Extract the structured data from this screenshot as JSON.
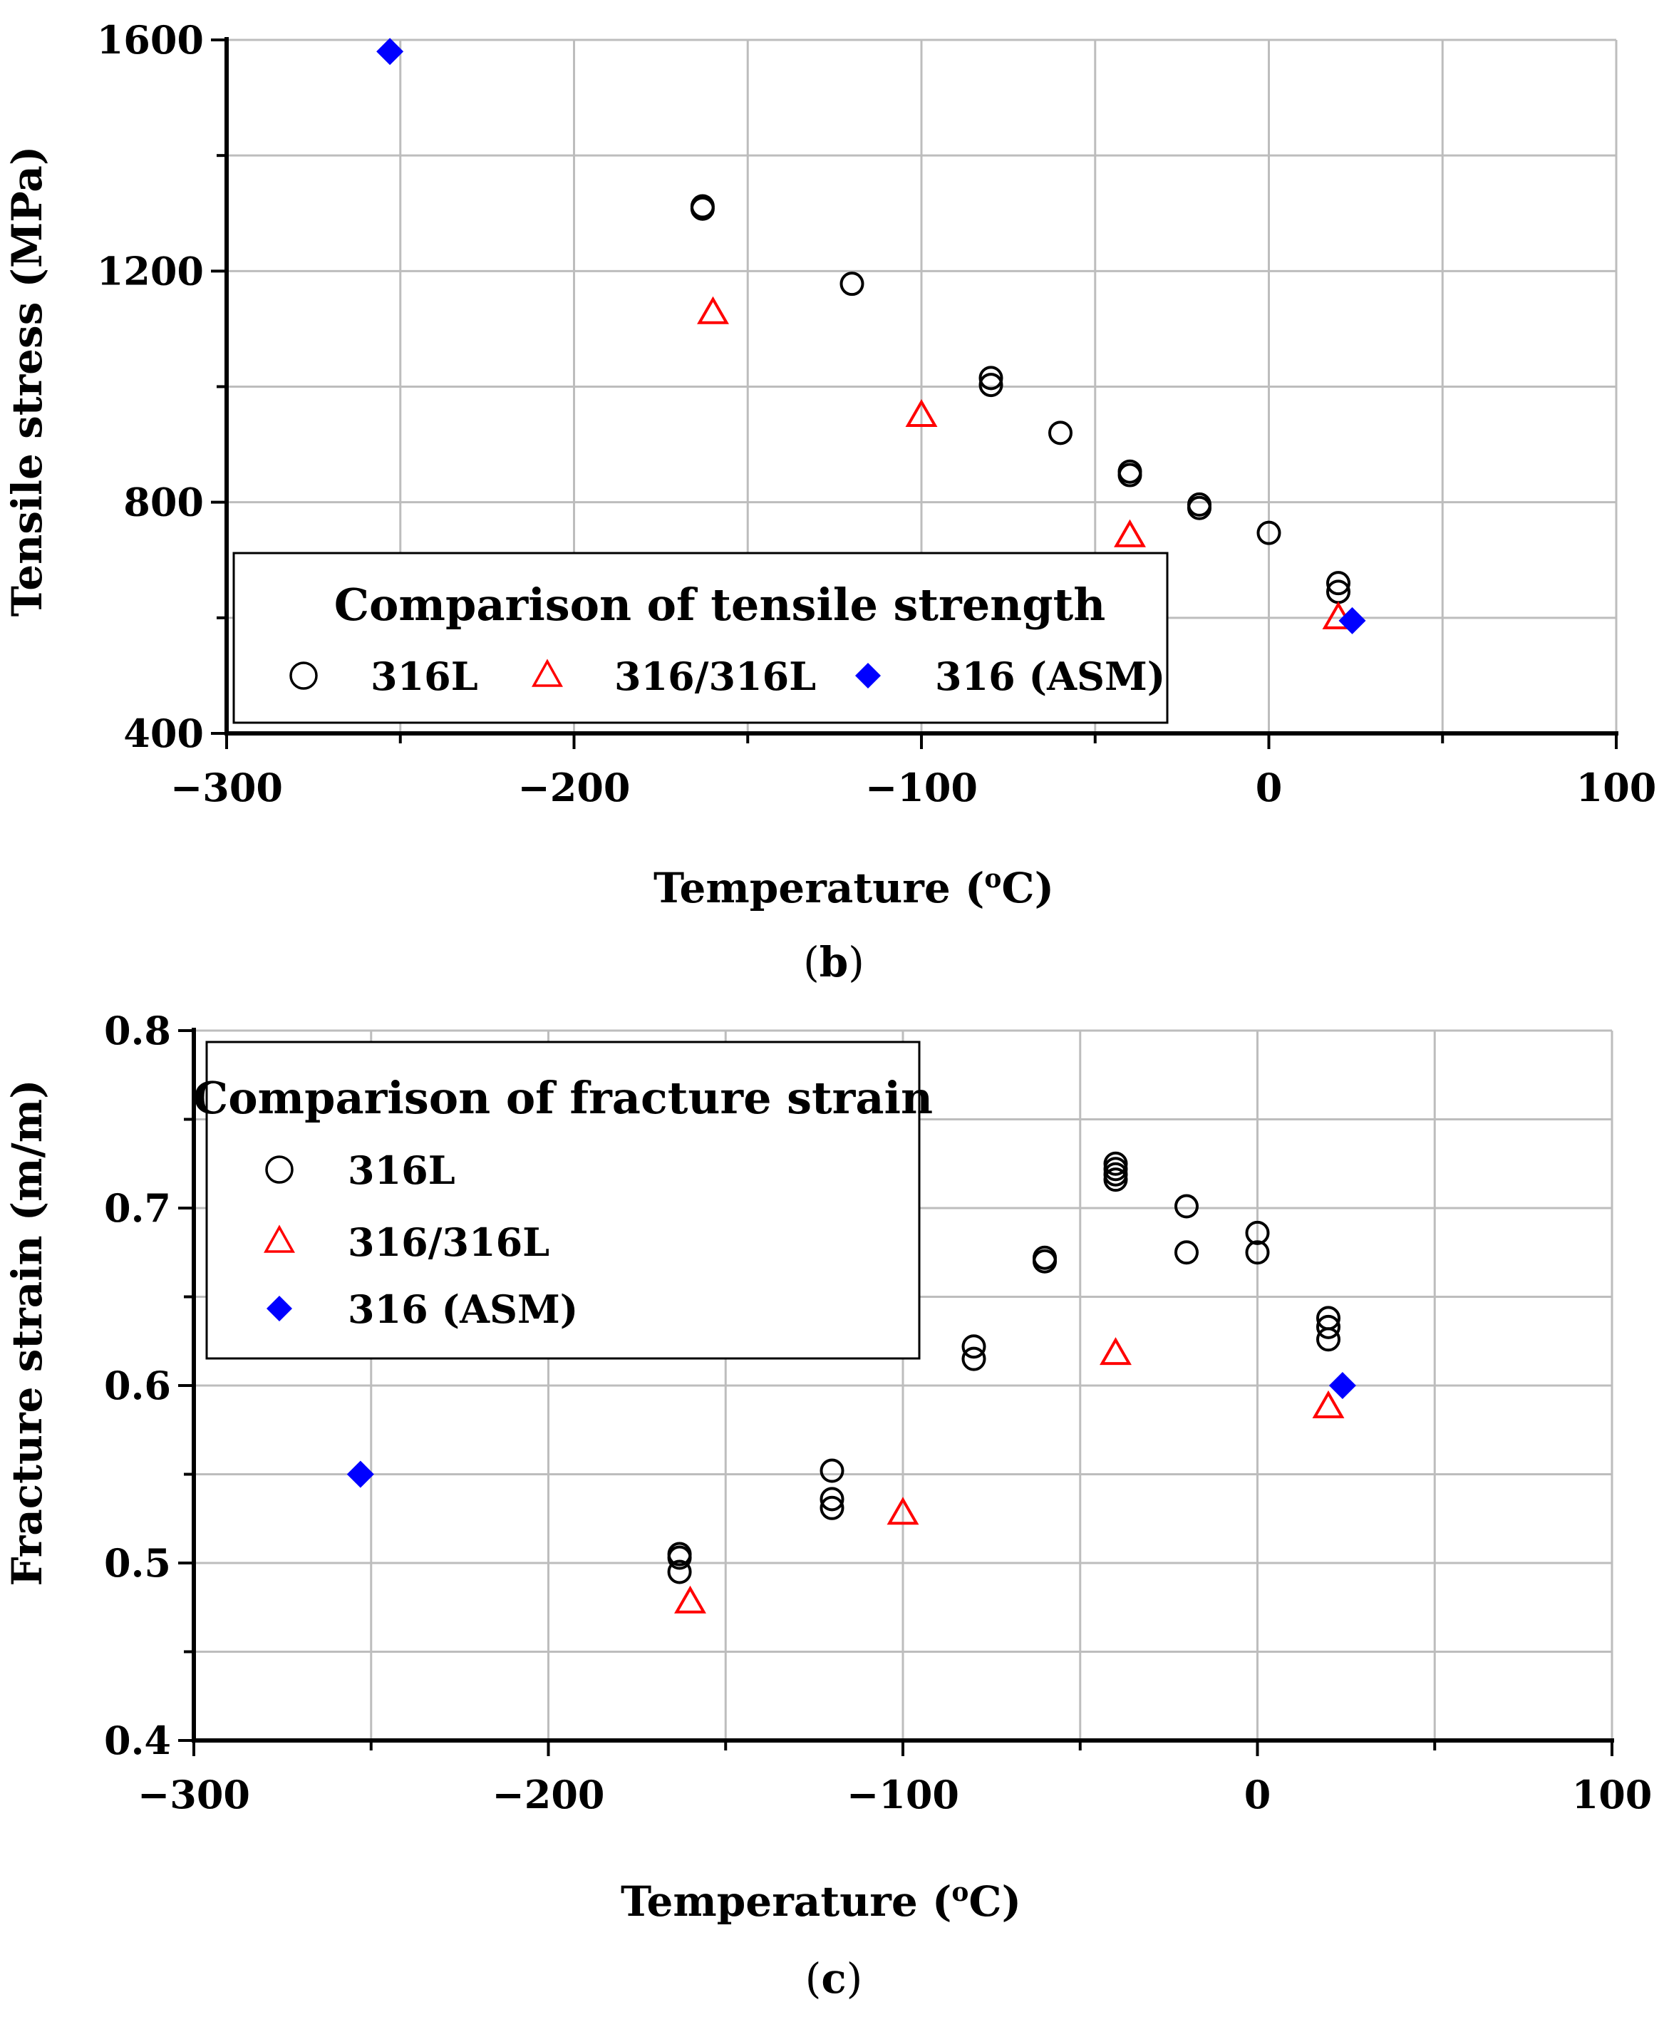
{
  "chart_data": [
    {
      "type": "scatter",
      "panel_label": "b",
      "xlabel": "Temperature (",
      "xlabel_sup": "o",
      "xlabel_unit": "C)",
      "ylabel": "Tensile stress (MPa)",
      "xlim": [
        -300,
        100
      ],
      "ylim": [
        400,
        1600
      ],
      "x_ticks": [
        -300,
        -200,
        -100,
        0,
        100
      ],
      "x_tick_labels": [
        "−300",
        "−200",
        "−100",
        "0",
        "100"
      ],
      "y_ticks": [
        400,
        800,
        1200,
        1600
      ],
      "y_tick_labels": [
        "400",
        "800",
        "1200",
        "1600"
      ],
      "grid": true,
      "legend": {
        "title": "Comparison of tensile strength",
        "placement": "bottom-left",
        "layout": "horizontal"
      },
      "series": [
        {
          "name": "316L",
          "marker": "circle-open",
          "color": "#000000",
          "points": [
            [
              -163,
              1308
            ],
            [
              -163,
              1312
            ],
            [
              -120,
              1178
            ],
            [
              -80,
              1003
            ],
            [
              -80,
              1015
            ],
            [
              -60,
              920
            ],
            [
              -40,
              847
            ],
            [
              -40,
              853
            ],
            [
              -20,
              790
            ],
            [
              -20,
              796
            ],
            [
              0,
              747
            ],
            [
              20,
              645
            ],
            [
              20,
              660
            ]
          ]
        },
        {
          "name": "316/316L",
          "marker": "triangle-open",
          "color": "#ff0000",
          "points": [
            [
              -160,
              1128
            ],
            [
              -100,
              950
            ],
            [
              -40,
              742
            ],
            [
              20,
              600
            ]
          ]
        },
        {
          "name": "316 (ASM)",
          "marker": "diamond-filled",
          "color": "#0000ff",
          "points": [
            [
              -253,
              1580
            ],
            [
              24,
              595
            ]
          ]
        }
      ]
    },
    {
      "type": "scatter",
      "panel_label": "c",
      "xlabel": "Temperature (",
      "xlabel_sup": "o",
      "xlabel_unit": "C)",
      "ylabel": "Fracture strain (m/m)",
      "xlim": [
        -300,
        100
      ],
      "ylim": [
        0.4,
        0.8
      ],
      "x_ticks": [
        -300,
        -200,
        -100,
        0,
        100
      ],
      "x_tick_labels": [
        "−300",
        "−200",
        "−100",
        "0",
        "100"
      ],
      "y_ticks": [
        0.4,
        0.5,
        0.6,
        0.7,
        0.8
      ],
      "y_tick_labels": [
        "0.4",
        "0.5",
        "0.6",
        "0.7",
        "0.8"
      ],
      "grid": true,
      "legend": {
        "title": "Comparison of fracture strain",
        "placement": "top-left",
        "layout": "vertical"
      },
      "series": [
        {
          "name": "316L",
          "marker": "circle-open",
          "color": "#000000",
          "points": [
            [
              -163,
              0.495
            ],
            [
              -163,
              0.503
            ],
            [
              -163,
              0.505
            ],
            [
              -120,
              0.531
            ],
            [
              -120,
              0.536
            ],
            [
              -120,
              0.552
            ],
            [
              -80,
              0.615
            ],
            [
              -80,
              0.622
            ],
            [
              -60,
              0.67
            ],
            [
              -60,
              0.672
            ],
            [
              -40,
              0.716
            ],
            [
              -40,
              0.719
            ],
            [
              -40,
              0.722
            ],
            [
              -40,
              0.725
            ],
            [
              -20,
              0.675
            ],
            [
              -20,
              0.701
            ],
            [
              0,
              0.675
            ],
            [
              0,
              0.686
            ],
            [
              20,
              0.626
            ],
            [
              20,
              0.633
            ],
            [
              20,
              0.638
            ]
          ]
        },
        {
          "name": "316/316L",
          "marker": "triangle-open",
          "color": "#ff0000",
          "points": [
            [
              -160,
              0.478
            ],
            [
              -100,
              0.528
            ],
            [
              -40,
              0.618
            ],
            [
              20,
              0.588
            ]
          ]
        },
        {
          "name": "316 (ASM)",
          "marker": "diamond-filled",
          "color": "#0000ff",
          "points": [
            [
              -253,
              0.55
            ],
            [
              24,
              0.6
            ]
          ]
        }
      ]
    }
  ]
}
